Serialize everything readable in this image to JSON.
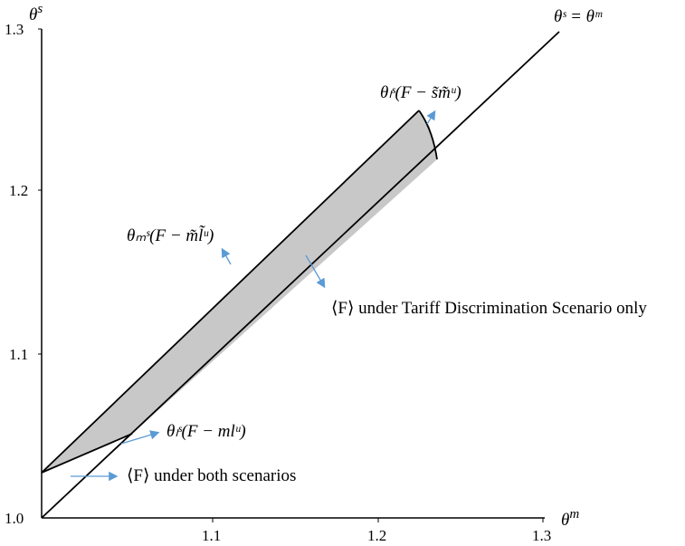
{
  "axes": {
    "x_title": "θ",
    "x_title_sup": "m",
    "y_title": "θ",
    "y_title_sup": "s",
    "x_ticks": [
      "1.1",
      "1.2",
      "1.3"
    ],
    "y_ticks": [
      "1.0",
      "1.1",
      "1.2",
      "1.3"
    ],
    "x_range": [
      1.0,
      1.3
    ],
    "y_range": [
      1.0,
      1.3
    ]
  },
  "diagonal_label": "θˢ = θᵐ",
  "labels": {
    "theta_l_top": "θₗˢ(F − s̃m̃ᵘ)",
    "theta_m": "θₘˢ(F − m̃l̃ᵘ)",
    "theta_l_bottom": "θₗˢ(F − mlᵘ)",
    "tariff_region": "⟨F⟩ under Tariff Discrimination Scenario only",
    "both_region": "⟨F⟩ under both scenarios"
  },
  "colors": {
    "region_fill": "#c8c8c8",
    "arrow": "#5b9bd5",
    "line": "#000000"
  }
}
